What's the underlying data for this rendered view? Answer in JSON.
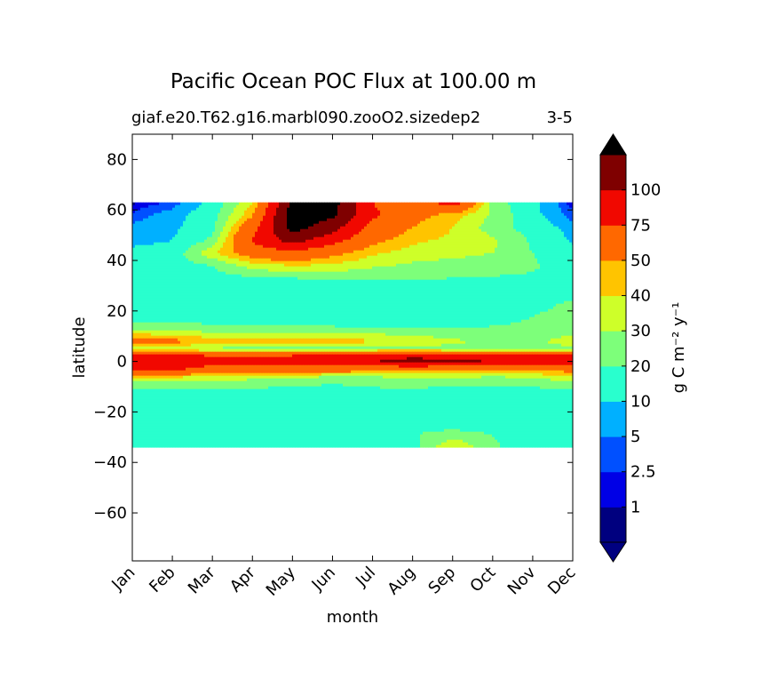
{
  "chart_data": {
    "type": "contourf",
    "title": "Pacific Ocean POC Flux at 100.00 m",
    "subtitle_left": "giaf.e20.T62.g16.marbl090.zooO2.sizedep2",
    "subtitle_right": "3-5",
    "xlabel": "month",
    "ylabel": "latitude",
    "colorbar_label": "g C m⁻² y⁻¹",
    "x_ticks": [
      "Jan",
      "Feb",
      "Mar",
      "Apr",
      "May",
      "Jun",
      "Jul",
      "Aug",
      "Sep",
      "Oct",
      "Nov",
      "Dec"
    ],
    "x_range": [
      0,
      11
    ],
    "y_ticks": [
      80,
      60,
      40,
      20,
      0,
      -20,
      -40,
      -60
    ],
    "ylim": [
      -79,
      90
    ],
    "data_lat_range": [
      -34,
      63
    ],
    "levels": [
      0,
      1,
      2.5,
      5,
      10,
      20,
      30,
      40,
      50,
      75,
      100,
      125
    ],
    "colorbar_tick_labels": [
      "1",
      "2.5",
      "5",
      "10",
      "20",
      "30",
      "40",
      "50",
      "75",
      "100"
    ],
    "colorbar_tick_values": [
      1,
      2.5,
      5,
      10,
      20,
      30,
      40,
      50,
      75,
      100
    ],
    "colors": [
      "#00007f",
      "#0000e6",
      "#0050ff",
      "#00b0ff",
      "#29ffce",
      "#7dff7a",
      "#ceff29",
      "#ffc400",
      "#ff6800",
      "#f10800",
      "#7f0000"
    ],
    "extend_min_color": "#000080",
    "extend_max_color": "#000000",
    "months": [
      0,
      1,
      2,
      3,
      4,
      5,
      6,
      7,
      8,
      9,
      10,
      11
    ],
    "latitudes": [
      63,
      58,
      53,
      48,
      43,
      38,
      33,
      28,
      23,
      18,
      13,
      8,
      5,
      2,
      0,
      -3,
      -6,
      -9,
      -13,
      -18,
      -23,
      -28,
      -34
    ],
    "values": [
      [
        0.5,
        3,
        12,
        38,
        130,
        135,
        75,
        55,
        90,
        25,
        12,
        0.8
      ],
      [
        3,
        7,
        15,
        48,
        140,
        130,
        80,
        55,
        45,
        28,
        12,
        3
      ],
      [
        6,
        8,
        17,
        65,
        135,
        110,
        65,
        50,
        40,
        25,
        15,
        7
      ],
      [
        8,
        10,
        22,
        78,
        110,
        85,
        55,
        42,
        38,
        32,
        18,
        9
      ],
      [
        12,
        13,
        38,
        60,
        70,
        55,
        42,
        36,
        33,
        30,
        20,
        12
      ],
      [
        15,
        16,
        20,
        35,
        40,
        38,
        32,
        28,
        26,
        25,
        21,
        16
      ],
      [
        18,
        18,
        16,
        18,
        20,
        21,
        21,
        21,
        20,
        19,
        19,
        18
      ],
      [
        14,
        13,
        13,
        13,
        13,
        13,
        13,
        13,
        13,
        14,
        15,
        15
      ],
      [
        17,
        15,
        13,
        12,
        11,
        11,
        11,
        11,
        12,
        14,
        18,
        21
      ],
      [
        16,
        14,
        13,
        12,
        12,
        11,
        12,
        12,
        13,
        16,
        20,
        22
      ],
      [
        25,
        25,
        24,
        23,
        24,
        22,
        21,
        21,
        20,
        21,
        22,
        25
      ],
      [
        60,
        55,
        45,
        45,
        45,
        45,
        42,
        38,
        32,
        28,
        28,
        35
      ],
      [
        35,
        32,
        28,
        26,
        24,
        24,
        26,
        28,
        26,
        25,
        25,
        28
      ],
      [
        85,
        85,
        78,
        78,
        80,
        85,
        92,
        95,
        90,
        85,
        82,
        85
      ],
      [
        90,
        88,
        80,
        78,
        90,
        92,
        98,
        110,
        108,
        98,
        88,
        88
      ],
      [
        80,
        78,
        70,
        68,
        65,
        62,
        60,
        58,
        55,
        54,
        55,
        58
      ],
      [
        45,
        42,
        38,
        35,
        32,
        30,
        30,
        32,
        32,
        30,
        32,
        38
      ],
      [
        25,
        24,
        24,
        22,
        21,
        20,
        21,
        22,
        21,
        21,
        22,
        26
      ],
      [
        15,
        15,
        16,
        17,
        17,
        17,
        18,
        17,
        17,
        15,
        15,
        16
      ],
      [
        12,
        12,
        12,
        12,
        12,
        12,
        12,
        12,
        12,
        12,
        12,
        12
      ],
      [
        11,
        11,
        11,
        11,
        11,
        11,
        11,
        11,
        11,
        11,
        11,
        11
      ],
      [
        11,
        11,
        11,
        11,
        11,
        11,
        11,
        19,
        22,
        19,
        14,
        12
      ],
      [
        11,
        11,
        11,
        11,
        11,
        11,
        11,
        16,
        40,
        22,
        13,
        11
      ]
    ]
  }
}
